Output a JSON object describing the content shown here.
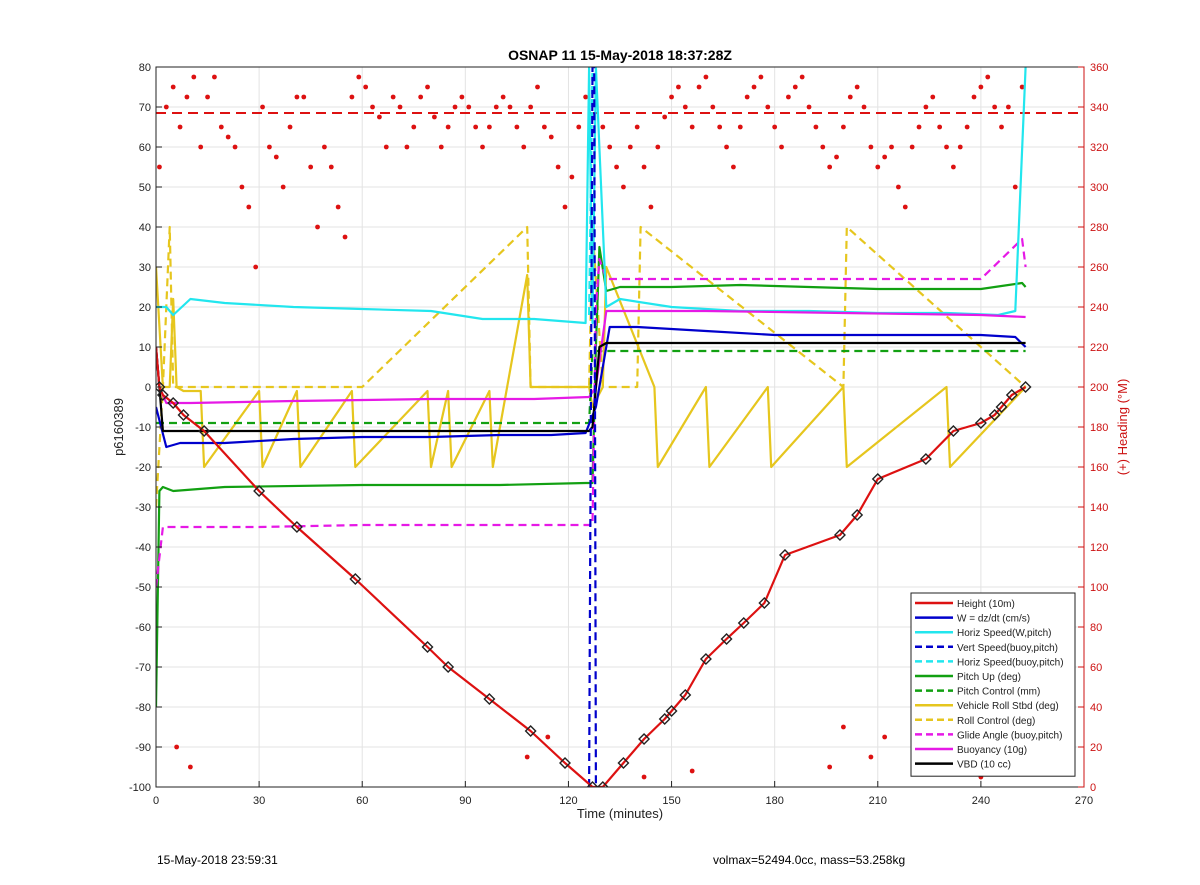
{
  "chart_data": {
    "type": "line",
    "title": "OSNAP 11 15-May-2018 18:37:28Z",
    "xlabel": "Time (minutes)",
    "ylabel": "p6160389",
    "y2label": "(+) Heading (°M)",
    "xlim": [
      0,
      270
    ],
    "ylim": [
      -100,
      80
    ],
    "y2lim": [
      0,
      360
    ],
    "xticks": [
      0,
      30,
      60,
      90,
      120,
      150,
      180,
      210,
      240,
      270
    ],
    "yticks": [
      -100,
      -90,
      -80,
      -70,
      -60,
      -50,
      -40,
      -30,
      -20,
      -10,
      0,
      10,
      20,
      30,
      40,
      50,
      60,
      70,
      80
    ],
    "y2ticks": [
      0,
      20,
      40,
      60,
      80,
      100,
      120,
      140,
      160,
      180,
      200,
      220,
      240,
      260,
      280,
      300,
      320,
      340,
      360
    ],
    "grid": true,
    "legend_position": "bottom-right",
    "series": [
      {
        "name": "Height (10m)",
        "color": "#dd1111",
        "style": "solid",
        "marker": "diamond",
        "x": [
          0,
          1,
          2,
          5,
          8,
          14,
          30,
          41,
          58,
          79,
          85,
          97,
          109,
          119,
          127,
          130,
          136,
          142,
          148,
          150,
          154,
          160,
          166,
          171,
          177,
          183,
          199,
          204,
          210,
          224,
          232,
          240,
          244,
          246,
          249,
          253
        ],
        "y": [
          10,
          0,
          -2,
          -4,
          -7,
          -11,
          -26,
          -35,
          -48,
          -65,
          -70,
          -78,
          -86,
          -94,
          -100,
          -100,
          -94,
          -88,
          -83,
          -81,
          -77,
          -68,
          -63,
          -59,
          -54,
          -42,
          -37,
          -32,
          -23,
          -18,
          -11,
          -9,
          -7,
          -5,
          -2,
          0
        ]
      },
      {
        "name": "W = dz/dt (cm/s)",
        "color": "#0000cc",
        "style": "solid",
        "x": [
          0,
          3,
          7,
          20,
          40,
          60,
          80,
          100,
          115,
          125,
          128,
          132,
          140,
          160,
          180,
          200,
          220,
          240,
          250,
          253
        ],
        "y": [
          -5,
          -15,
          -14,
          -14,
          -13,
          -12.5,
          -12.5,
          -12,
          -12,
          -11.5,
          -5,
          15,
          15,
          14,
          13,
          13,
          13,
          13,
          12.5,
          10
        ]
      },
      {
        "name": "Horiz Speed(W,pitch)",
        "color": "#22e6ee",
        "style": "solid",
        "x": [
          0,
          3,
          5,
          10,
          20,
          40,
          60,
          80,
          95,
          110,
          125,
          126,
          127,
          128,
          131,
          135,
          150,
          170,
          190,
          210,
          230,
          245,
          250,
          253
        ],
        "y": [
          20,
          20,
          18,
          22,
          21,
          20,
          19.5,
          19,
          17,
          17,
          16,
          80,
          16,
          80,
          20,
          22,
          20,
          19,
          19,
          18.5,
          18.5,
          18,
          19,
          80
        ]
      },
      {
        "name": "Vert Speed(buoy,pitch)",
        "color": "#0000cc",
        "style": "dashed",
        "x": [
          126,
          127,
          127.5,
          128
        ],
        "y": [
          -100,
          80,
          80,
          -100
        ]
      },
      {
        "name": "Horiz Speed(buoy,pitch)",
        "color": "#22e6ee",
        "style": "dashed",
        "x": [
          126,
          127
        ],
        "y": [
          18,
          80
        ]
      },
      {
        "name": "Pitch Up (deg)",
        "color": "#12a012",
        "style": "solid",
        "x": [
          0,
          1,
          2,
          5,
          20,
          60,
          100,
          125,
          127,
          128,
          129,
          131,
          135,
          150,
          170,
          190,
          210,
          240,
          252,
          253
        ],
        "y": [
          -80,
          -26,
          -25,
          -26,
          -25,
          -24.5,
          -24.5,
          -24,
          -24,
          10,
          35,
          24,
          25,
          25,
          25.5,
          25,
          24.5,
          24.5,
          26,
          25
        ]
      },
      {
        "name": "Pitch Control (mm)",
        "color": "#12a012",
        "style": "dashed",
        "x": [
          0,
          2,
          60,
          126,
          127,
          130,
          253
        ],
        "y": [
          -9,
          -9,
          -9,
          -9,
          9,
          9,
          9
        ]
      },
      {
        "name": "Vehicle Roll Stbd (deg)",
        "color": "#e6c61e",
        "style": "solid",
        "x": [
          0,
          2,
          4,
          5,
          6,
          8,
          13,
          14,
          30,
          31,
          41,
          42,
          57,
          58,
          79,
          80,
          85,
          86,
          97,
          98,
          108,
          109,
          126,
          127,
          130,
          131,
          145,
          146,
          160,
          161,
          178,
          179,
          200,
          201,
          230,
          231,
          253
        ],
        "y": [
          30,
          0,
          0,
          22,
          0,
          -1,
          -1,
          -20,
          -1,
          -20,
          -1,
          -20,
          -1,
          -20,
          -1,
          -20,
          -1,
          -20,
          -1,
          -20,
          28,
          0,
          0,
          -5,
          0,
          30,
          0,
          -20,
          0,
          -20,
          0,
          -20,
          0,
          -20,
          0,
          -20,
          0
        ]
      },
      {
        "name": "Roll Control (deg)",
        "color": "#e6c61e",
        "style": "dashed",
        "x": [
          0,
          2,
          4,
          5,
          6,
          60,
          108,
          109,
          126,
          127,
          130,
          140,
          141,
          200,
          201,
          253
        ],
        "y": [
          -30,
          0,
          40,
          0,
          0,
          0,
          40,
          0,
          0,
          40,
          0,
          0,
          40,
          0,
          40,
          0
        ]
      },
      {
        "name": "Glide Angle (buoy,pitch)",
        "color": "#e619e6",
        "style": "dashed",
        "x": [
          0,
          2,
          30,
          60,
          90,
          126,
          127,
          128,
          129,
          131,
          150,
          180,
          210,
          240,
          252,
          253
        ],
        "y": [
          -50,
          -35,
          -35,
          -34.5,
          -34.5,
          -34.5,
          -34.5,
          20,
          32,
          27,
          27,
          27,
          27,
          27,
          37,
          30
        ]
      },
      {
        "name": "Buoyancy (10g)",
        "color": "#e619e6",
        "style": "solid",
        "x": [
          0,
          1,
          3,
          10,
          40,
          80,
          110,
          126,
          128,
          131,
          135,
          160,
          200,
          240,
          253
        ],
        "y": [
          10,
          0,
          -4,
          -4,
          -3.5,
          -3,
          -3,
          -2.5,
          0,
          19,
          19,
          19,
          18.5,
          18,
          17.5
        ]
      },
      {
        "name": "VBD (10 cc)",
        "color": "#000000",
        "style": "solid",
        "marker": "dot",
        "x": [
          0,
          1,
          2,
          126,
          127,
          129,
          131,
          253
        ],
        "y": [
          10,
          0,
          -11,
          -11,
          -10,
          10,
          11,
          11
        ]
      }
    ],
    "heading_series": {
      "color": "#dd1111",
      "mean_heading": 337,
      "x": [
        1,
        3,
        5,
        7,
        9,
        11,
        13,
        15,
        17,
        19,
        21,
        23,
        25,
        27,
        29,
        31,
        33,
        35,
        37,
        39,
        41,
        43,
        45,
        47,
        49,
        51,
        53,
        55,
        57,
        59,
        61,
        63,
        65,
        67,
        69,
        71,
        73,
        75,
        77,
        79,
        81,
        83,
        85,
        87,
        89,
        91,
        93,
        95,
        97,
        99,
        101,
        103,
        105,
        107,
        109,
        111,
        113,
        115,
        117,
        119,
        121,
        123,
        125,
        130,
        132,
        134,
        136,
        138,
        140,
        142,
        144,
        146,
        148,
        150,
        152,
        154,
        156,
        158,
        160,
        162,
        164,
        166,
        168,
        170,
        172,
        174,
        176,
        178,
        180,
        182,
        184,
        186,
        188,
        190,
        192,
        194,
        196,
        198,
        200,
        202,
        204,
        206,
        208,
        210,
        212,
        214,
        216,
        218,
        220,
        222,
        224,
        226,
        228,
        230,
        232,
        234,
        236,
        238,
        240,
        242,
        244,
        246,
        248,
        250,
        252,
        6,
        10,
        108,
        114,
        142,
        156,
        196,
        200,
        208,
        212,
        222,
        240
      ],
      "y": [
        310,
        340,
        350,
        330,
        345,
        355,
        320,
        345,
        355,
        330,
        325,
        320,
        300,
        290,
        260,
        340,
        320,
        315,
        300,
        330,
        345,
        345,
        310,
        280,
        320,
        310,
        290,
        275,
        345,
        355,
        350,
        340,
        335,
        320,
        345,
        340,
        320,
        330,
        345,
        350,
        335,
        320,
        330,
        340,
        345,
        340,
        330,
        320,
        330,
        340,
        345,
        340,
        330,
        320,
        340,
        350,
        330,
        325,
        310,
        290,
        305,
        330,
        345,
        330,
        320,
        310,
        300,
        320,
        330,
        310,
        290,
        320,
        335,
        345,
        350,
        340,
        330,
        350,
        355,
        340,
        330,
        320,
        310,
        330,
        345,
        350,
        355,
        340,
        330,
        320,
        345,
        350,
        355,
        340,
        330,
        320,
        310,
        315,
        330,
        345,
        350,
        340,
        320,
        310,
        315,
        320,
        300,
        290,
        320,
        330,
        340,
        345,
        330,
        320,
        310,
        320,
        330,
        345,
        350,
        355,
        340,
        330,
        340,
        300,
        350,
        20,
        10,
        15,
        25,
        5,
        8,
        10,
        30,
        15,
        25,
        10,
        5
      ]
    }
  },
  "footer": {
    "date_text": "15-May-2018 23:59:31",
    "vol_text": "volmax=52494.0cc, mass=53.258kg"
  }
}
